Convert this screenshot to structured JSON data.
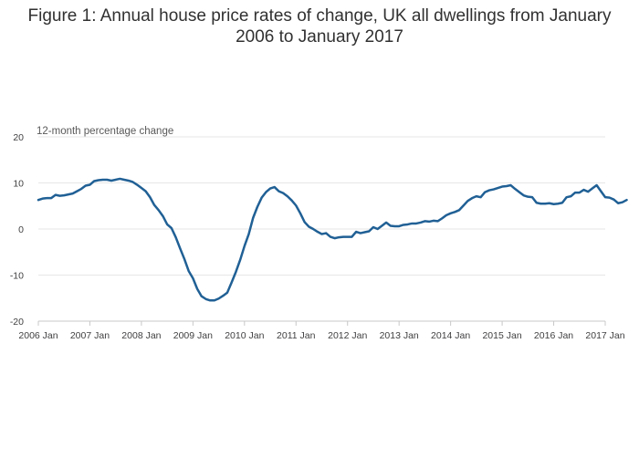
{
  "title": "Figure 1: Annual house price rates of change, UK all dwellings from January 2006 to January 2017",
  "chart_data": {
    "type": "line",
    "title": "Figure 1: Annual house price rates of change, UK all dwellings from January 2006 to January 2017",
    "xlabel": "",
    "ylabel": "12-month percentage change",
    "ylim": [
      -20,
      20
    ],
    "yticks": [
      20,
      10,
      0,
      -10,
      -20
    ],
    "xticks": [
      "2006 Jan",
      "2007 Jan",
      "2008 Jan",
      "2009 Jan",
      "2010 Jan",
      "2011 Jan",
      "2012 Jan",
      "2013 Jan",
      "2014 Jan",
      "2015 Jan",
      "2016 Jan",
      "2017 Jan"
    ],
    "grid": true,
    "legend": "none",
    "series_color": "#206095",
    "x_start": "2006 Jan",
    "x_end": "2017 Jan",
    "values": [
      6.3,
      6.6,
      6.7,
      6.7,
      7.4,
      7.2,
      7.3,
      7.5,
      7.7,
      8.2,
      8.7,
      9.4,
      9.6,
      10.4,
      10.6,
      10.7,
      10.7,
      10.5,
      10.7,
      10.9,
      10.7,
      10.5,
      10.2,
      9.6,
      8.9,
      8.2,
      6.9,
      5.2,
      4.1,
      2.8,
      1.0,
      0.2,
      -1.8,
      -4.2,
      -6.5,
      -9.1,
      -10.7,
      -13.0,
      -14.6,
      -15.2,
      -15.5,
      -15.5,
      -15.1,
      -14.5,
      -13.8,
      -11.6,
      -9.3,
      -6.7,
      -3.7,
      -1.1,
      2.4,
      4.8,
      6.8,
      8.0,
      8.8,
      9.1,
      8.2,
      7.8,
      7.1,
      6.2,
      5.1,
      3.4,
      1.5,
      0.5,
      0.0,
      -0.6,
      -1.1,
      -0.9,
      -1.7,
      -2.0,
      -1.8,
      -1.7,
      -1.7,
      -1.7,
      -0.6,
      -0.9,
      -0.7,
      -0.5,
      0.4,
      0.0,
      0.7,
      1.4,
      0.7,
      0.6,
      0.6,
      0.9,
      1.0,
      1.2,
      1.2,
      1.4,
      1.7,
      1.6,
      1.8,
      1.7,
      2.3,
      3.0,
      3.4,
      3.7,
      4.1,
      5.1,
      6.1,
      6.7,
      7.1,
      6.9,
      8.0,
      8.4,
      8.6,
      8.9,
      9.2,
      9.3,
      9.5,
      8.7,
      8.0,
      7.3,
      7.0,
      6.9,
      5.7,
      5.5,
      5.5,
      5.6,
      5.4,
      5.5,
      5.7,
      6.9,
      7.1,
      7.9,
      7.9,
      8.5,
      8.1,
      8.8,
      9.5,
      8.2,
      6.9,
      6.8,
      6.4,
      5.6,
      5.8,
      6.3
    ]
  }
}
